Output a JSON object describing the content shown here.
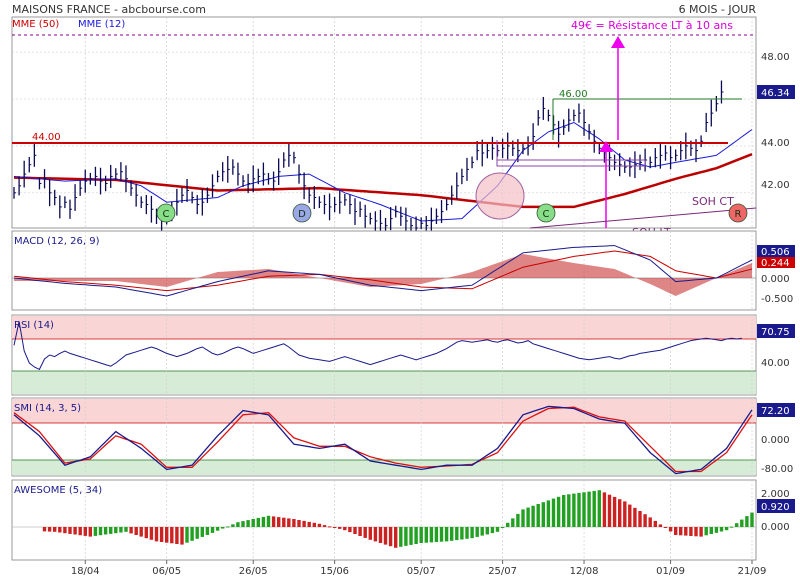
{
  "header": {
    "title": "MAISONS FRANCE - abcbourse.com",
    "period": "6 MOIS - JOUR"
  },
  "chart_data": [
    {
      "type": "line",
      "panel": "price",
      "legend": [
        {
          "name": "MME (50)",
          "color": "#cc0000"
        },
        {
          "name": "MME (12)",
          "color": "#1a1adb"
        }
      ],
      "y_ticks": [
        "48.00",
        "44.00",
        "42.00"
      ],
      "ylim": [
        40.5,
        49.5
      ],
      "last_value": "46.34",
      "annotations": {
        "resistance_text": "49€ = Résistance LT à 10 ans",
        "level_44": "44.00",
        "level_46": "46.00",
        "soh_ct": "SOH CT",
        "soh_lt": "SOH LT"
      },
      "markers": [
        {
          "label": "C",
          "x": 166,
          "color": "#88dd88"
        },
        {
          "label": "D",
          "x": 302,
          "color": "#9aa8e8"
        },
        {
          "label": "C",
          "x": 546,
          "color": "#88dd88"
        },
        {
          "label": "R",
          "x": 738,
          "color": "#ee6666"
        }
      ],
      "closes": [
        42.0,
        42.3,
        42.8,
        43.2,
        43.6,
        42.4,
        42.6,
        42.0,
        41.8,
        41.4,
        41.6,
        41.3,
        41.8,
        42.2,
        42.5,
        42.6,
        42.7,
        42.5,
        42.4,
        42.7,
        42.8,
        42.9,
        42.6,
        42.2,
        41.9,
        41.6,
        41.5,
        41.3,
        41.0,
        40.8,
        40.9,
        41.2,
        41.6,
        41.9,
        42.1,
        41.8,
        41.5,
        41.6,
        41.9,
        42.3,
        42.7,
        42.9,
        43.0,
        43.1,
        42.8,
        42.5,
        42.4,
        42.6,
        42.7,
        42.8,
        42.6,
        42.5,
        42.9,
        43.4,
        43.6,
        43.5,
        42.8,
        42.3,
        41.9,
        41.8,
        41.6,
        41.5,
        41.4,
        41.5,
        41.6,
        41.7,
        41.5,
        41.2,
        41.3,
        41.0,
        40.9,
        40.8,
        40.7,
        40.6,
        40.9,
        41.2,
        41.0,
        40.8,
        40.6,
        40.5,
        40.7,
        40.6,
        40.8,
        41.0,
        41.2,
        41.5,
        41.9,
        42.3,
        42.7,
        43.0,
        43.3,
        43.8,
        43.7,
        43.8,
        43.9,
        43.8,
        43.9,
        44.0,
        43.9,
        43.8,
        43.9,
        44.0,
        44.4,
        45.2,
        45.6,
        45.3,
        44.9,
        44.5,
        44.8,
        45.1,
        45.3,
        45.4,
        45.0,
        44.6,
        44.2,
        43.9,
        43.7,
        43.5,
        43.3,
        43.2,
        43.1,
        43.1,
        43.2,
        43.3,
        43.4,
        43.3,
        43.5,
        43.6,
        43.7,
        43.5,
        43.6,
        43.8,
        44.0,
        43.9,
        43.8,
        44.2,
        45.0,
        45.4,
        45.8,
        46.3
      ],
      "mme50_anchors": [
        [
          0,
          42.65
        ],
        [
          20,
          42.55
        ],
        [
          40,
          42.1
        ],
        [
          60,
          42.2
        ],
        [
          80,
          41.9
        ],
        [
          100,
          41.4
        ],
        [
          110,
          41.4
        ],
        [
          120,
          41.95
        ],
        [
          130,
          42.6
        ],
        [
          138,
          43.05
        ],
        [
          145,
          43.65
        ]
      ],
      "mme12_anchors": [
        [
          0,
          42.7
        ],
        [
          10,
          42.5
        ],
        [
          20,
          42.6
        ],
        [
          25,
          42.3
        ],
        [
          30,
          41.6
        ],
        [
          40,
          41.8
        ],
        [
          45,
          42.3
        ],
        [
          52,
          42.7
        ],
        [
          58,
          42.8
        ],
        [
          65,
          42.0
        ],
        [
          72,
          41.5
        ],
        [
          80,
          40.8
        ],
        [
          88,
          40.9
        ],
        [
          95,
          42.3
        ],
        [
          100,
          43.8
        ],
        [
          105,
          44.6
        ],
        [
          110,
          45.0
        ],
        [
          115,
          44.3
        ],
        [
          120,
          43.4
        ],
        [
          125,
          43.1
        ],
        [
          130,
          43.3
        ],
        [
          138,
          43.6
        ],
        [
          145,
          44.7
        ]
      ]
    },
    {
      "type": "line",
      "panel": "macd",
      "label": "MACD (12, 26, 9)",
      "y_ticks": [
        "0.000",
        "-0.500"
      ],
      "ylim": [
        -1.0,
        1.0
      ],
      "last_values": [
        "0.506",
        "0.244"
      ],
      "macd_anchors": [
        [
          0,
          0.0
        ],
        [
          10,
          -0.15
        ],
        [
          20,
          -0.25
        ],
        [
          30,
          -0.5
        ],
        [
          40,
          -0.1
        ],
        [
          50,
          0.2
        ],
        [
          60,
          0.1
        ],
        [
          70,
          -0.2
        ],
        [
          80,
          -0.35
        ],
        [
          90,
          -0.2
        ],
        [
          100,
          0.7
        ],
        [
          110,
          0.85
        ],
        [
          118,
          0.9
        ],
        [
          125,
          0.5
        ],
        [
          130,
          -0.1
        ],
        [
          138,
          0.0
        ],
        [
          145,
          0.5
        ]
      ],
      "signal_anchors": [
        [
          0,
          0.05
        ],
        [
          10,
          -0.1
        ],
        [
          20,
          -0.2
        ],
        [
          30,
          -0.35
        ],
        [
          40,
          -0.2
        ],
        [
          50,
          0.05
        ],
        [
          60,
          0.1
        ],
        [
          70,
          -0.05
        ],
        [
          80,
          -0.25
        ],
        [
          90,
          -0.3
        ],
        [
          100,
          0.3
        ],
        [
          110,
          0.6
        ],
        [
          118,
          0.75
        ],
        [
          125,
          0.6
        ],
        [
          130,
          0.2
        ],
        [
          138,
          0.0
        ],
        [
          145,
          0.25
        ]
      ]
    },
    {
      "type": "line",
      "panel": "rsi",
      "label": "RSI (14)",
      "y_ticks": [
        "40.00"
      ],
      "ylim": [
        0,
        100
      ],
      "bands": [
        70,
        30
      ],
      "last_value": "70.75",
      "values": [
        62,
        92,
        55,
        40,
        35,
        32,
        45,
        50,
        48,
        52,
        55,
        52,
        50,
        48,
        46,
        44,
        42,
        40,
        38,
        36,
        40,
        45,
        50,
        52,
        54,
        56,
        58,
        60,
        58,
        55,
        52,
        50,
        48,
        50,
        52,
        55,
        58,
        60,
        56,
        52,
        50,
        52,
        55,
        58,
        60,
        58,
        55,
        52,
        54,
        56,
        58,
        60,
        62,
        64,
        60,
        55,
        50,
        48,
        46,
        45,
        44,
        43,
        42,
        44,
        46,
        48,
        46,
        44,
        42,
        40,
        38,
        40,
        42,
        44,
        46,
        48,
        50,
        48,
        46,
        44,
        46,
        48,
        50,
        52,
        55,
        58,
        62,
        66,
        68,
        67,
        66,
        67,
        68,
        69,
        67,
        66,
        68,
        69,
        67,
        65,
        66,
        68,
        64,
        62,
        60,
        58,
        56,
        54,
        52,
        50,
        48,
        46,
        45,
        44,
        45,
        46,
        47,
        48,
        46,
        45,
        47,
        49,
        50,
        52,
        53,
        54,
        55,
        56,
        58,
        60,
        62,
        64,
        66,
        68,
        69,
        70,
        71,
        70,
        69,
        68,
        70,
        71,
        70,
        71
      ]
    },
    {
      "type": "line",
      "panel": "smi",
      "label": "SMI (14, 3, 5)",
      "y_ticks": [
        "0.000",
        "-80.00"
      ],
      "ylim": [
        -100,
        110
      ],
      "bands": [
        40,
        -60
      ],
      "last_value": "72.20",
      "smi_anchors": [
        [
          0,
          60
        ],
        [
          5,
          10
        ],
        [
          10,
          -60
        ],
        [
          15,
          -40
        ],
        [
          20,
          20
        ],
        [
          25,
          -20
        ],
        [
          30,
          -70
        ],
        [
          35,
          -60
        ],
        [
          40,
          10
        ],
        [
          45,
          70
        ],
        [
          50,
          60
        ],
        [
          55,
          -10
        ],
        [
          60,
          -20
        ],
        [
          65,
          -10
        ],
        [
          70,
          -50
        ],
        [
          75,
          -60
        ],
        [
          80,
          -70
        ],
        [
          85,
          -60
        ],
        [
          90,
          -60
        ],
        [
          95,
          -20
        ],
        [
          100,
          60
        ],
        [
          105,
          80
        ],
        [
          110,
          75
        ],
        [
          115,
          50
        ],
        [
          120,
          40
        ],
        [
          125,
          -30
        ],
        [
          130,
          -80
        ],
        [
          135,
          -70
        ],
        [
          140,
          -20
        ],
        [
          145,
          72
        ]
      ],
      "signal_anchors": [
        [
          0,
          65
        ],
        [
          5,
          20
        ],
        [
          10,
          -55
        ],
        [
          15,
          -45
        ],
        [
          20,
          10
        ],
        [
          25,
          -10
        ],
        [
          30,
          -65
        ],
        [
          35,
          -65
        ],
        [
          40,
          -5
        ],
        [
          45,
          60
        ],
        [
          50,
          65
        ],
        [
          55,
          5
        ],
        [
          60,
          -15
        ],
        [
          65,
          -15
        ],
        [
          70,
          -40
        ],
        [
          75,
          -55
        ],
        [
          80,
          -65
        ],
        [
          85,
          -62
        ],
        [
          90,
          -58
        ],
        [
          95,
          -30
        ],
        [
          100,
          45
        ],
        [
          105,
          75
        ],
        [
          110,
          78
        ],
        [
          115,
          55
        ],
        [
          120,
          45
        ],
        [
          125,
          -15
        ],
        [
          130,
          -75
        ],
        [
          135,
          -75
        ],
        [
          140,
          -30
        ],
        [
          145,
          60
        ]
      ]
    },
    {
      "type": "bar",
      "panel": "awesome",
      "label": "AWESOME (5, 34)",
      "y_ticks": [
        "2.000",
        "0.000"
      ],
      "ylim": [
        -2.0,
        2.6
      ],
      "last_value": "0.920",
      "anchors": [
        [
          0,
          -0.2
        ],
        [
          8,
          -0.3
        ],
        [
          15,
          -0.6
        ],
        [
          22,
          -0.3
        ],
        [
          28,
          -0.9
        ],
        [
          33,
          -1.1
        ],
        [
          38,
          -0.5
        ],
        [
          44,
          0.3
        ],
        [
          50,
          0.7
        ],
        [
          55,
          0.5
        ],
        [
          60,
          0.2
        ],
        [
          65,
          -0.2
        ],
        [
          70,
          -0.8
        ],
        [
          75,
          -1.3
        ],
        [
          80,
          -1.0
        ],
        [
          85,
          -0.9
        ],
        [
          90,
          -0.7
        ],
        [
          95,
          -0.3
        ],
        [
          100,
          1.1
        ],
        [
          108,
          2.0
        ],
        [
          115,
          2.3
        ],
        [
          120,
          1.6
        ],
        [
          125,
          0.6
        ],
        [
          130,
          -0.5
        ],
        [
          135,
          -0.6
        ],
        [
          140,
          -0.2
        ],
        [
          145,
          0.9
        ]
      ],
      "colors": {
        "up": "#22a022",
        "down": "#cc2222"
      }
    }
  ],
  "x_axis": {
    "ticks": [
      "18/04",
      "06/05",
      "26/05",
      "15/06",
      "05/07",
      "25/07",
      "12/08",
      "01/09",
      "21/09"
    ]
  }
}
